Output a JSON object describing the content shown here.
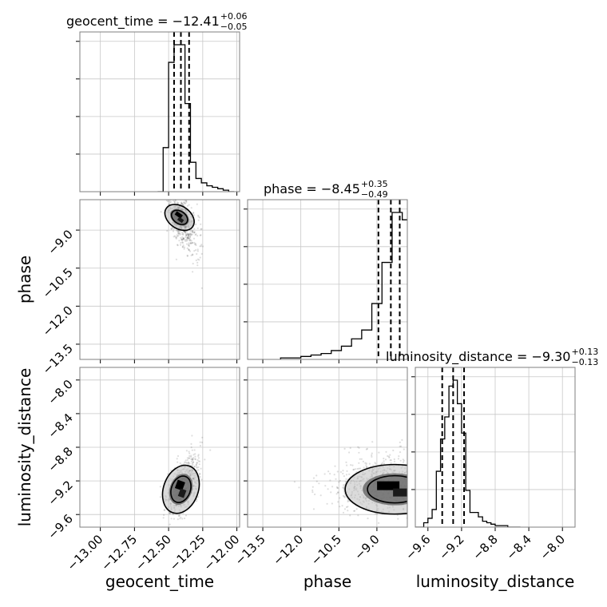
{
  "chart_data": {
    "type": "corner",
    "parameters": [
      "geocent_time",
      "phase",
      "luminosity_distance"
    ],
    "axis_labels": {
      "geocent_time": "geocent_time",
      "phase": "phase",
      "luminosity_distance": "luminosity_distance"
    },
    "ranges": {
      "geocent_time": [
        -13.15,
        -11.98
      ],
      "phase": [
        -14.1,
        -7.8
      ],
      "luminosity_distance": [
        -9.75,
        -7.85
      ]
    },
    "ticks": {
      "geocent_time": [
        -13.0,
        -12.75,
        -12.5,
        -12.25,
        -12.0
      ],
      "phase": [
        -13.5,
        -12.0,
        -10.5,
        -9.0
      ],
      "luminosity_distance": [
        -9.6,
        -9.2,
        -8.8,
        -8.4,
        -8.0
      ]
    },
    "tick_labels": {
      "geocent_time": [
        "−13.00",
        "−12.75",
        "−12.50",
        "−12.25",
        "−12.00"
      ],
      "phase": [
        "−13.5",
        "−12.0",
        "−10.5",
        "−9.0"
      ],
      "luminosity_distance": [
        "−9.6",
        "−9.2",
        "−8.8",
        "−8.4",
        "−8.0"
      ]
    },
    "titles": [
      {
        "prefix": "geocent_time = −12.41",
        "sup": "+0.06",
        "sub": "−0.05"
      },
      {
        "prefix": "phase = −8.45",
        "sup": "+0.35",
        "sub": "−0.49"
      },
      {
        "prefix": "luminosity_distance = −9.30",
        "sup": "+0.13",
        "sub": "−0.13"
      }
    ],
    "quantiles": {
      "geocent_time": [
        -12.46,
        -12.41,
        -12.35
      ],
      "phase": [
        -8.94,
        -8.45,
        -8.1
      ],
      "luminosity_distance": [
        -9.43,
        -9.3,
        -9.17
      ]
    },
    "histograms": {
      "geocent_time": {
        "edges": [
          -12.58,
          -12.54,
          -12.5,
          -12.46,
          -12.42,
          -12.38,
          -12.34,
          -12.3,
          -12.26,
          -12.22,
          -12.18,
          -12.14,
          -12.1,
          -12.06,
          -12.02
        ],
        "counts": [
          0,
          30,
          88,
          100,
          100,
          60,
          20,
          9,
          6,
          4,
          3,
          2,
          1,
          0
        ]
      },
      "phase": {
        "edges": [
          -12.8,
          -12.4,
          -12.0,
          -11.6,
          -11.2,
          -10.8,
          -10.4,
          -10.0,
          -9.6,
          -9.2,
          -8.8,
          -8.4,
          -8.0,
          -7.6
        ],
        "counts": [
          1,
          1,
          2,
          3,
          4,
          6,
          9,
          14,
          20,
          38,
          66,
          100,
          95
        ]
      },
      "luminosity_distance": {
        "edges": [
          -9.75,
          -9.7,
          -9.65,
          -9.6,
          -9.55,
          -9.5,
          -9.45,
          -9.4,
          -9.35,
          -9.3,
          -9.25,
          -9.2,
          -9.15,
          -9.1,
          -9.05,
          -9.0,
          -8.95,
          -8.9,
          -8.85,
          -8.8,
          -8.75,
          -8.7,
          -8.65,
          -8.6,
          -8.55,
          -8.5
        ],
        "counts": [
          0,
          0,
          3,
          6,
          12,
          38,
          60,
          75,
          96,
          100,
          84,
          64,
          25,
          10,
          10,
          7,
          4,
          3,
          2,
          1,
          1,
          1,
          0,
          0,
          0
        ]
      }
    },
    "contour_centers": {
      "phase_vs_geocent_time": [
        -12.42,
        -8.5
      ],
      "luminosity_distance_vs_geocent_time": [
        -12.41,
        -9.3
      ],
      "luminosity_distance_vs_phase": [
        -8.3,
        -9.3
      ]
    },
    "grid": true
  }
}
